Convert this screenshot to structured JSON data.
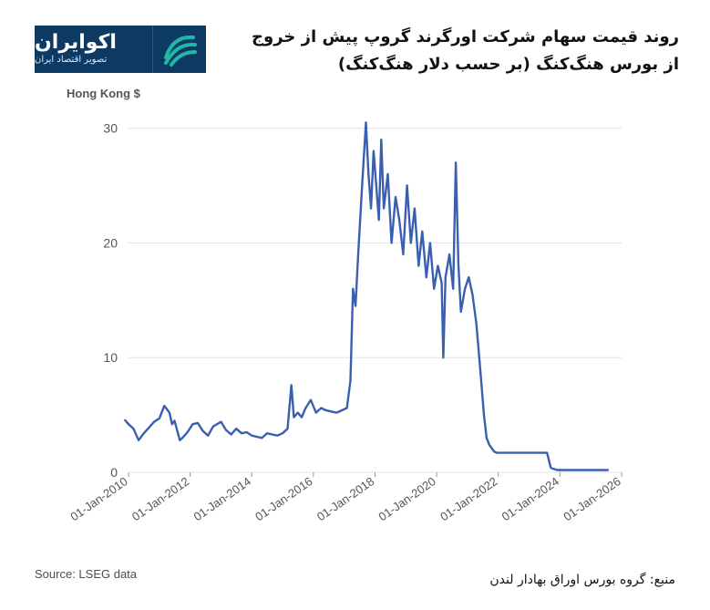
{
  "logo": {
    "name": "اکوایران",
    "tagline": "تصویر اقتصاد ایران"
  },
  "title": "روند قیمت سهام شرکت اورگرند گروپ پیش از خروج از بورس هنگ‌کنگ (بر حسب دلار هنگ‌کنگ)",
  "source_en": "Source: LSEG data",
  "source_fa": "منبع: گروه بورس اوراق بهادار لندن",
  "colors": {
    "line": "#3a5fb0",
    "grid": "#e3e3e3",
    "logo_bg": "#0d3a63",
    "logo_accent": "#1fb7a6"
  },
  "chart_data": {
    "type": "line",
    "title": "روند قیمت سهام شرکت اورگرند گروپ پیش از خروج از بورس هنگ‌کنگ (بر حسب دلار هنگ‌کنگ)",
    "ylabel": "Hong Kong $",
    "xlabel": "",
    "ylim": [
      0,
      31
    ],
    "y_ticks": [
      0,
      10,
      20,
      30
    ],
    "xlim": [
      "2010-01-01",
      "2026-01-01"
    ],
    "x_tick_labels": [
      "01-Jan-2010",
      "01-Jan-2012",
      "01-Jan-2014",
      "01-Jan-2016",
      "01-Jan-2018",
      "01-Jan-2020",
      "01-Jan-2022",
      "01-Jan-2024",
      "01-Jan-2026"
    ],
    "x_tick_dates": [
      "2010-01-01",
      "2012-01-01",
      "2014-01-01",
      "2016-01-01",
      "2018-01-01",
      "2020-01-01",
      "2022-01-01",
      "2024-01-01",
      "2026-01-01"
    ],
    "grid": "horizontal",
    "series": [
      {
        "x": [
          "2009-11-15",
          "2010-01-01",
          "2010-03-01",
          "2010-05-01",
          "2010-07-01",
          "2010-09-01",
          "2010-11-01",
          "2011-01-01",
          "2011-03-01",
          "2011-05-01",
          "2011-06-01",
          "2011-07-01",
          "2011-09-01",
          "2011-10-01",
          "2011-12-01",
          "2012-02-01",
          "2012-04-01",
          "2012-06-01",
          "2012-08-01",
          "2012-10-01",
          "2013-01-01",
          "2013-03-01",
          "2013-05-01",
          "2013-07-01",
          "2013-09-01",
          "2013-11-01",
          "2014-01-01",
          "2014-03-01",
          "2014-05-01",
          "2014-07-01",
          "2014-09-01",
          "2014-11-01",
          "2015-01-01",
          "2015-03-01",
          "2015-04-15",
          "2015-05-15",
          "2015-07-01",
          "2015-08-15",
          "2015-10-01",
          "2015-12-01",
          "2016-02-01",
          "2016-04-01",
          "2016-06-01",
          "2016-08-01",
          "2016-10-01",
          "2016-12-01",
          "2017-02-01",
          "2017-03-15",
          "2017-04-15",
          "2017-05-15",
          "2017-06-15",
          "2017-08-01",
          "2017-09-15",
          "2017-10-15",
          "2017-11-15",
          "2017-12-15",
          "2018-01-15",
          "2018-02-15",
          "2018-03-15",
          "2018-04-15",
          "2018-06-01",
          "2018-07-15",
          "2018-09-01",
          "2018-10-15",
          "2018-12-01",
          "2019-01-15",
          "2019-03-01",
          "2019-04-15",
          "2019-06-01",
          "2019-07-15",
          "2019-09-01",
          "2019-10-15",
          "2019-12-01",
          "2020-01-15",
          "2020-03-01",
          "2020-03-20",
          "2020-04-15",
          "2020-06-01",
          "2020-07-15",
          "2020-08-15",
          "2020-09-15",
          "2020-10-15",
          "2020-12-01",
          "2021-01-15",
          "2021-03-01",
          "2021-04-15",
          "2021-06-01",
          "2021-07-15",
          "2021-08-15",
          "2021-09-15",
          "2021-10-15",
          "2021-11-15",
          "2021-12-15",
          "2022-01-15",
          "2022-03-01",
          "2022-06-01",
          "2022-09-01",
          "2022-12-01",
          "2023-03-01",
          "2023-06-01",
          "2023-08-01",
          "2023-09-15",
          "2023-10-15",
          "2023-12-01",
          "2024-03-01",
          "2024-06-01",
          "2024-09-01",
          "2024-12-01",
          "2025-03-01",
          "2025-06-01",
          "2025-08-01"
        ],
        "values": [
          4.6,
          4.2,
          3.8,
          2.8,
          3.4,
          3.9,
          4.4,
          4.7,
          5.8,
          5.2,
          4.2,
          4.5,
          2.8,
          3.0,
          3.5,
          4.2,
          4.3,
          3.6,
          3.2,
          4.0,
          4.4,
          3.7,
          3.3,
          3.8,
          3.4,
          3.5,
          3.2,
          3.1,
          3.0,
          3.4,
          3.3,
          3.2,
          3.4,
          3.8,
          7.6,
          4.8,
          5.2,
          4.8,
          5.6,
          6.3,
          5.2,
          5.6,
          5.4,
          5.3,
          5.2,
          5.4,
          5.6,
          8.0,
          16.0,
          14.5,
          19.0,
          25.0,
          30.5,
          26.0,
          23.0,
          28.0,
          25.0,
          22.0,
          29.0,
          23.0,
          26.0,
          20.0,
          24.0,
          22.0,
          19.0,
          25.0,
          20.0,
          23.0,
          18.0,
          21.0,
          17.0,
          20.0,
          16.0,
          18.0,
          16.5,
          10.0,
          17.0,
          19.0,
          16.0,
          27.0,
          18.0,
          14.0,
          16.0,
          17.0,
          15.5,
          13.0,
          9.0,
          5.0,
          3.0,
          2.4,
          2.1,
          1.8,
          1.7,
          1.7,
          1.7,
          1.7,
          1.7,
          1.7,
          1.7,
          1.7,
          1.7,
          0.4,
          0.3,
          0.2,
          0.2,
          0.2,
          0.2,
          0.2,
          0.2,
          0.2,
          0.2
        ]
      }
    ]
  }
}
